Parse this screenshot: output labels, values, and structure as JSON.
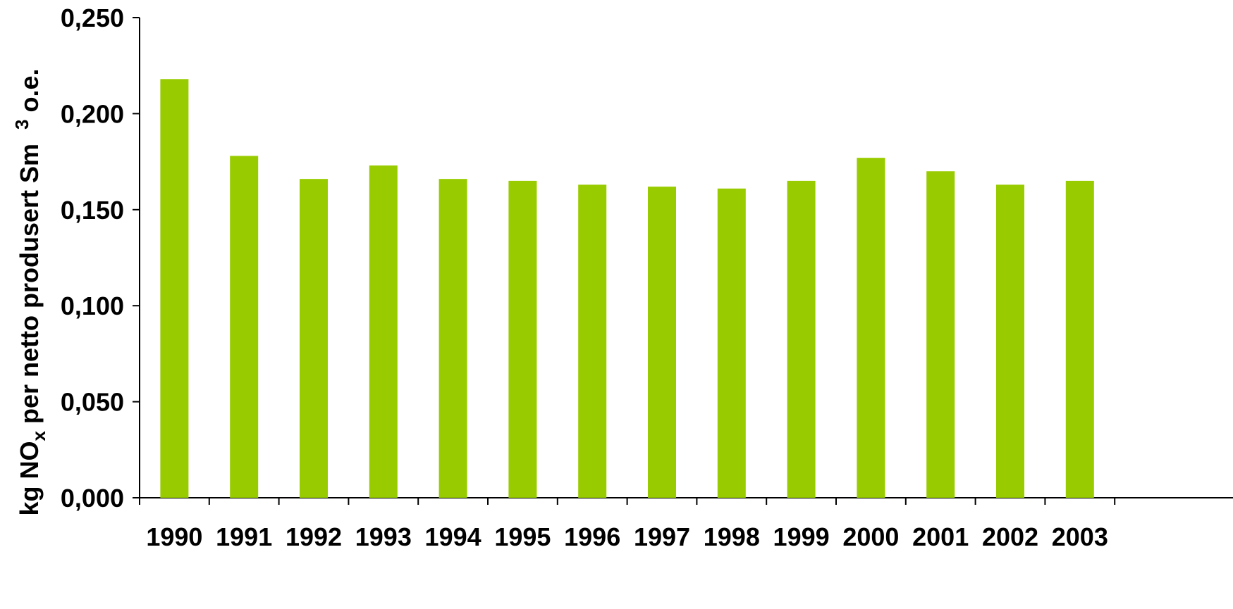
{
  "chart_data": {
    "type": "bar",
    "categories": [
      "1990",
      "1991",
      "1992",
      "1993",
      "1994",
      "1995",
      "1996",
      "1997",
      "1998",
      "1999",
      "2000",
      "2001",
      "2002",
      "2003"
    ],
    "values": [
      0.218,
      0.178,
      0.166,
      0.173,
      0.166,
      0.165,
      0.163,
      0.162,
      0.161,
      0.165,
      0.177,
      0.17,
      0.163,
      0.165
    ],
    "yticks": [
      "0,000",
      "0,050",
      "0,100",
      "0,150",
      "0,200",
      "0,250"
    ],
    "ylim": [
      0,
      0.25
    ],
    "ylabel": {
      "main": "kg NO",
      "sub": "x",
      "rest": " per netto produsert Sm",
      "sup": "3",
      "tail": " o.e."
    },
    "xlabel": "",
    "title": "",
    "grid": false,
    "legend": "none",
    "colors": {
      "bar": "#99CC00",
      "axis": "#000000"
    }
  }
}
